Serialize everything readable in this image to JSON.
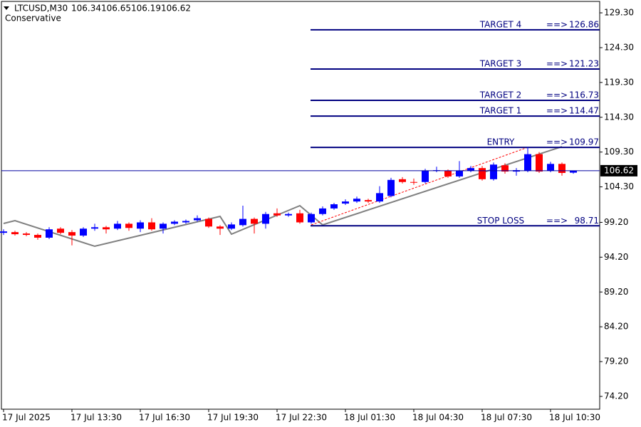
{
  "chart_data": {
    "type": "candlestick",
    "symbol": "LTCUSD,M30",
    "subtitle": "Conservative",
    "categories": [
      "17 Jul 2025",
      null,
      null,
      null,
      null,
      null,
      "17 Jul 13:30",
      null,
      null,
      null,
      null,
      null,
      "17 Jul 16:30",
      null,
      null,
      null,
      null,
      null,
      "17 Jul 19:30",
      null,
      null,
      null,
      null,
      null,
      "17 Jul 22:30",
      null,
      null,
      null,
      null,
      null,
      "18 Jul 01:30",
      null,
      null,
      null,
      null,
      null,
      "18 Jul 04:30",
      null,
      null,
      null,
      null,
      null,
      "18 Jul 07:30",
      null,
      null,
      null,
      null,
      null,
      "18 Jul 10:30",
      null,
      null
    ],
    "open": [
      97.7,
      97.8,
      97.6,
      97.4,
      97.0,
      98.3,
      97.8,
      97.3,
      98.3,
      98.5,
      98.3,
      99.0,
      98.3,
      99.2,
      98.3,
      99.0,
      99.2,
      99.5,
      99.7,
      98.6,
      98.3,
      98.8,
      99.7,
      99.0,
      100.5,
      100.2,
      100.5,
      99.2,
      100.4,
      101.2,
      101.9,
      102.2,
      102.4,
      102.2,
      103.0,
      105.4,
      105.0,
      105.0,
      106.6,
      106.6,
      105.8,
      106.6,
      107.0,
      105.4,
      107.4,
      106.5,
      106.6,
      109.0,
      106.6,
      107.6,
      106.34
    ],
    "high": [
      98.2,
      98.0,
      97.8,
      97.6,
      98.5,
      98.5,
      98.1,
      98.5,
      99.0,
      98.7,
      99.4,
      99.2,
      99.5,
      99.8,
      99.2,
      99.5,
      99.6,
      100.2,
      99.9,
      98.8,
      99.2,
      101.6,
      99.9,
      100.7,
      101.2,
      100.6,
      101.0,
      100.6,
      101.5,
      102.0,
      102.5,
      102.9,
      102.6,
      104.4,
      105.6,
      105.7,
      105.5,
      106.9,
      107.2,
      106.8,
      108.0,
      107.3,
      107.3,
      107.8,
      107.7,
      107.0,
      110.0,
      109.3,
      107.9,
      107.8,
      106.65
    ],
    "low": [
      97.4,
      97.3,
      97.2,
      96.7,
      96.8,
      97.5,
      95.9,
      97.1,
      98.0,
      97.6,
      98.1,
      98.0,
      97.8,
      98.0,
      97.6,
      98.8,
      99.0,
      99.3,
      98.4,
      97.4,
      98.1,
      98.6,
      97.6,
      98.3,
      100.0,
      100.0,
      99.0,
      99.0,
      100.2,
      101.0,
      101.7,
      102.0,
      102.0,
      102.0,
      102.8,
      104.8,
      104.6,
      104.8,
      106.4,
      105.6,
      105.6,
      106.4,
      105.2,
      105.2,
      106.2,
      105.9,
      106.4,
      106.3,
      106.4,
      105.9,
      106.19
    ],
    "close": [
      97.9,
      97.5,
      97.4,
      97.0,
      98.2,
      97.7,
      97.3,
      98.3,
      98.5,
      98.2,
      99.0,
      98.4,
      99.2,
      98.2,
      99.0,
      99.3,
      99.4,
      99.8,
      98.6,
      98.3,
      98.9,
      99.7,
      99.0,
      100.4,
      100.2,
      100.4,
      99.2,
      100.4,
      101.2,
      101.8,
      102.2,
      102.6,
      102.2,
      103.4,
      105.3,
      105.0,
      104.9,
      106.6,
      106.7,
      105.8,
      106.6,
      107.0,
      105.4,
      107.5,
      106.5,
      106.7,
      109.0,
      106.5,
      107.6,
      106.3,
      106.62
    ],
    "up_color": "#0000ff",
    "down_color": "#ff0000",
    "ylim": [
      72.36,
      130.94
    ],
    "yticks": [
      {
        "value": 129.3,
        "label": "129.30"
      },
      {
        "value": 124.3,
        "label": "124.30"
      },
      {
        "value": 119.3,
        "label": "119.30"
      },
      {
        "value": 114.3,
        "label": "114.30"
      },
      {
        "value": 109.3,
        "label": "109.30"
      },
      {
        "value": 104.3,
        "label": "104.30"
      },
      {
        "value": 99.2,
        "label": "99.20"
      },
      {
        "value": 94.2,
        "label": "94.20"
      },
      {
        "value": 89.2,
        "label": "89.20"
      },
      {
        "value": 84.2,
        "label": "84.20"
      },
      {
        "value": 79.2,
        "label": "79.20"
      },
      {
        "value": 74.2,
        "label": "74.20"
      }
    ],
    "levels": [
      {
        "name": "TARGET 4",
        "arrow": "==>",
        "value": 126.86
      },
      {
        "name": "TARGET 3",
        "arrow": "==>",
        "value": 121.23
      },
      {
        "name": "TARGET 2",
        "arrow": "==>",
        "value": 116.73
      },
      {
        "name": "TARGET 1",
        "arrow": "==>",
        "value": 114.47
      },
      {
        "name": "ENTRY",
        "arrow": "==>",
        "value": 109.97
      },
      {
        "name": "STOP LOSS",
        "arrow": "==>",
        "value": 98.71
      }
    ],
    "level_color": "#000080",
    "current_color": "#0000a0",
    "zigzag": {
      "color": "#808080",
      "x": [
        0,
        1,
        8,
        19,
        20,
        26,
        28,
        49
      ],
      "values": [
        99.04,
        99.45,
        95.77,
        100.06,
        97.51,
        101.6,
        98.84,
        110.08
      ]
    },
    "trend": {
      "color": "#ff0000",
      "x": [
        27,
        46
      ],
      "values": [
        98.84,
        109.98
      ]
    }
  }
}
